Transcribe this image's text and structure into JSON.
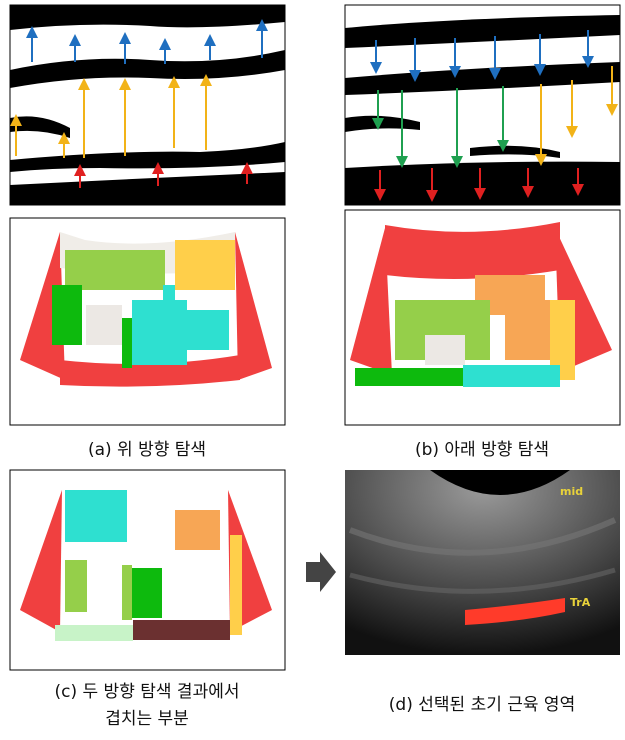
{
  "panels": {
    "a": {
      "caption": "(a) 위 방향 탐색"
    },
    "b": {
      "caption": "(b) 아래 방향 탐색"
    },
    "c": {
      "caption_lines": [
        "(c) 두 방향 탐색 결과에서",
        "겹치는 부분"
      ]
    },
    "d": {
      "caption": "(d) 선택된 초기 근육 영역",
      "labels": [
        "mid",
        "TrA"
      ]
    }
  }
}
